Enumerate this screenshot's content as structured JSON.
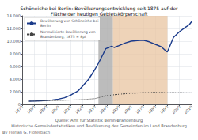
{
  "chart_data": {
    "type": "line",
    "title": "Schöneiche bei Berlin: Bevölkerungsentwicklung seit 1875 auf der\nFläche der heutigen Gebietskörperschaft",
    "series": [
      {
        "name": "Bevölkerung von Schöneiche bei\nBerlin",
        "color": "#1a3a8a",
        "line_style": "solid",
        "x": [
          1875,
          1880,
          1885,
          1890,
          1895,
          1900,
          1905,
          1910,
          1916,
          1920,
          1925,
          1930,
          1933,
          1937,
          1939,
          1944,
          1946,
          1950,
          1955,
          1960,
          1965,
          1970,
          1975,
          1980,
          1985,
          1989,
          1990,
          1995,
          2000,
          2005,
          2008,
          2010
        ],
        "values": [
          500,
          520,
          560,
          620,
          700,
          820,
          1050,
          1450,
          2100,
          2900,
          4000,
          5500,
          6500,
          8000,
          8800,
          9200,
          9000,
          9300,
          9700,
          10000,
          10100,
          10150,
          9900,
          9500,
          9100,
          8400,
          8300,
          10600,
          11500,
          12200,
          12600,
          13100
        ]
      },
      {
        "name": "Normalisierte Bevölkerung von\nBrandenburg, 1875 = 8pt",
        "color": "#444444",
        "line_style": "dotted",
        "x": [
          1875,
          1880,
          1890,
          1900,
          1910,
          1920,
          1930,
          1939,
          1945,
          1950,
          1960,
          1970,
          1980,
          1990,
          2000,
          2010
        ],
        "values": [
          500,
          520,
          560,
          600,
          680,
          750,
          900,
          1350,
          1500,
          1600,
          1750,
          1850,
          1900,
          1850,
          1850,
          1820
        ]
      }
    ],
    "shaded_regions": [
      {
        "start": 1933,
        "end": 1945,
        "color": "#b0b0b0"
      },
      {
        "start": 1945,
        "end": 1990,
        "color": "#e8c4a0"
      }
    ],
    "xlim": [
      1870,
      2010
    ],
    "xticks": [
      1870,
      1880,
      1890,
      1900,
      1910,
      1920,
      1930,
      1940,
      1950,
      1960,
      1970,
      1980,
      1990,
      2000,
      2010
    ],
    "ylim": [
      0,
      14000
    ],
    "yticks": [
      0,
      {
        "value": 2000,
        "label": "2.000"
      },
      {
        "value": 4000,
        "label": "4.000"
      },
      {
        "value": 6000,
        "label": "6.000"
      },
      {
        "value": 8000,
        "label": "8.000"
      },
      {
        "value": 10000,
        "label": "10.000"
      },
      {
        "value": 12000,
        "label": "12.000"
      },
      {
        "value": 14000,
        "label": "14.000"
      }
    ],
    "grid": true,
    "legend": "upper left",
    "annotations": [
      "Quelle: Amt für Statistik Berlin-Brandenburg",
      "Historische Gemeindestatistiken und Bevölkerung des Gemeinden im Land Brandenburg",
      "By Florian G. Flöterbach"
    ]
  }
}
